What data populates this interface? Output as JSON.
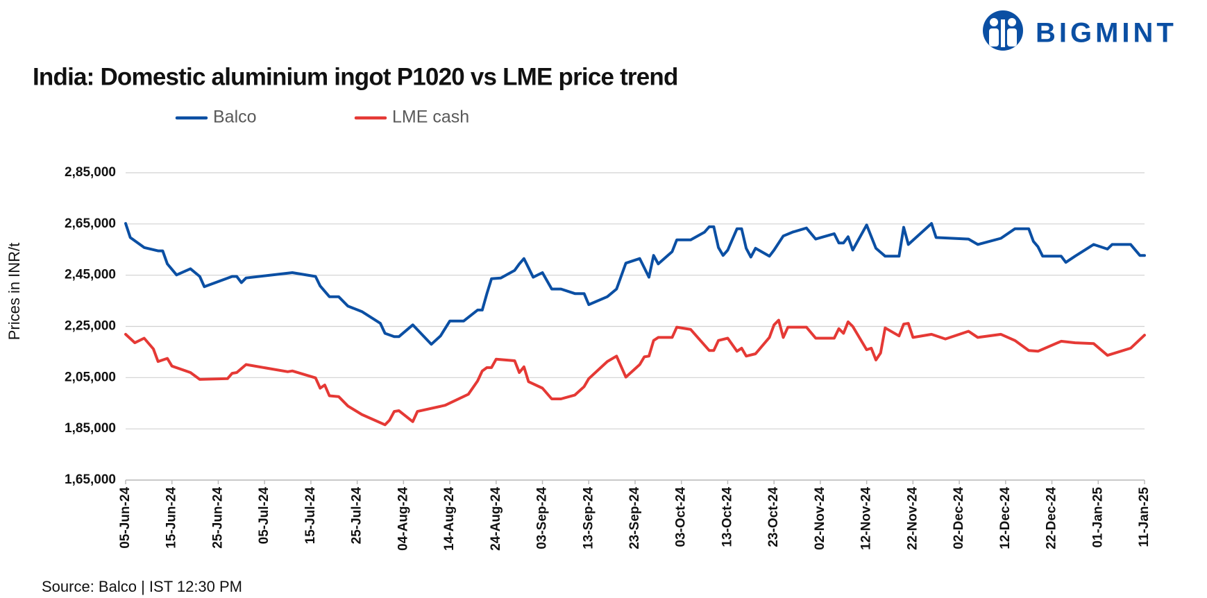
{
  "logo": "BIGMINT",
  "source": "Source: Balco | IST 12:30 PM",
  "chart_data": {
    "type": "line",
    "title": "India: Domestic aluminium ingot P1020 vs LME price trend",
    "y_label": "Prices in INR/t",
    "grid": true,
    "legend": "top-left",
    "xlim": [
      "2024-06-05",
      "2025-01-11"
    ],
    "xticks": [
      {
        "value": "2024-06-05",
        "label": "05-Jun-24"
      },
      {
        "value": "2024-06-15",
        "label": "15-Jun-24"
      },
      {
        "value": "2024-06-25",
        "label": "25-Jun-24"
      },
      {
        "value": "2024-07-05",
        "label": "05-Jul-24"
      },
      {
        "value": "2024-07-15",
        "label": "15-Jul-24"
      },
      {
        "value": "2024-07-25",
        "label": "25-Jul-24"
      },
      {
        "value": "2024-08-04",
        "label": "04-Aug-24"
      },
      {
        "value": "2024-08-14",
        "label": "14-Aug-24"
      },
      {
        "value": "2024-08-24",
        "label": "24-Aug-24"
      },
      {
        "value": "2024-09-03",
        "label": "03-Sep-24"
      },
      {
        "value": "2024-09-13",
        "label": "13-Sep-24"
      },
      {
        "value": "2024-09-23",
        "label": "23-Sep-24"
      },
      {
        "value": "2024-10-03",
        "label": "03-Oct-24"
      },
      {
        "value": "2024-10-13",
        "label": "13-Oct-24"
      },
      {
        "value": "2024-10-23",
        "label": "23-Oct-24"
      },
      {
        "value": "2024-11-02",
        "label": "02-Nov-24"
      },
      {
        "value": "2024-11-12",
        "label": "12-Nov-24"
      },
      {
        "value": "2024-11-22",
        "label": "22-Nov-24"
      },
      {
        "value": "2024-12-02",
        "label": "02-Dec-24"
      },
      {
        "value": "2024-12-12",
        "label": "12-Dec-24"
      },
      {
        "value": "2024-12-22",
        "label": "22-Dec-24"
      },
      {
        "value": "2025-01-01",
        "label": "01-Jan-25"
      },
      {
        "value": "2025-01-11",
        "label": "11-Jan-25"
      }
    ],
    "ylim": [
      165000,
      285000
    ],
    "yticks": [
      {
        "value": 165000,
        "label": "1,65,000"
      },
      {
        "value": 185000,
        "label": "1,85,000"
      },
      {
        "value": 205000,
        "label": "2,05,000"
      },
      {
        "value": 225000,
        "label": "2,25,000"
      },
      {
        "value": 245000,
        "label": "2,45,000"
      },
      {
        "value": 265000,
        "label": "2,65,000"
      },
      {
        "value": 285000,
        "label": "2,85,000"
      }
    ],
    "series": [
      {
        "name": "Balco",
        "color": "#0b4fa3",
        "x": [
          "2024-06-05",
          "2024-06-06",
          "2024-06-09",
          "2024-06-12",
          "2024-06-13",
          "2024-06-14",
          "2024-06-16",
          "2024-06-19",
          "2024-06-21",
          "2024-06-22",
          "2024-06-28",
          "2024-06-29",
          "2024-06-30",
          "2024-07-01",
          "2024-07-11",
          "2024-07-16",
          "2024-07-17",
          "2024-07-19",
          "2024-07-21",
          "2024-07-23",
          "2024-07-26",
          "2024-07-30",
          "2024-07-31",
          "2024-08-02",
          "2024-08-03",
          "2024-08-06",
          "2024-08-10",
          "2024-08-12",
          "2024-08-14",
          "2024-08-17",
          "2024-08-20",
          "2024-08-21",
          "2024-08-22",
          "2024-08-23",
          "2024-08-25",
          "2024-08-28",
          "2024-08-29",
          "2024-08-30",
          "2024-09-01",
          "2024-09-03",
          "2024-09-05",
          "2024-09-07",
          "2024-09-10",
          "2024-09-12",
          "2024-09-13",
          "2024-09-17",
          "2024-09-19",
          "2024-09-21",
          "2024-09-24",
          "2024-09-26",
          "2024-09-27",
          "2024-09-28",
          "2024-10-01",
          "2024-10-02",
          "2024-10-05",
          "2024-10-08",
          "2024-10-09",
          "2024-10-10",
          "2024-10-11",
          "2024-10-12",
          "2024-10-13",
          "2024-10-15",
          "2024-10-16",
          "2024-10-17",
          "2024-10-18",
          "2024-10-19",
          "2024-10-22",
          "2024-10-23",
          "2024-10-25",
          "2024-10-27",
          "2024-10-30",
          "2024-11-01",
          "2024-11-05",
          "2024-11-06",
          "2024-11-07",
          "2024-11-08",
          "2024-11-09",
          "2024-11-12",
          "2024-11-14",
          "2024-11-16",
          "2024-11-19",
          "2024-11-20",
          "2024-11-21",
          "2024-11-26",
          "2024-11-27",
          "2024-12-04",
          "2024-12-06",
          "2024-12-11",
          "2024-12-14",
          "2024-12-17",
          "2024-12-18",
          "2024-12-19",
          "2024-12-20",
          "2024-12-24",
          "2024-12-25",
          "2024-12-27",
          "2024-12-31",
          "2025-01-03",
          "2025-01-04",
          "2025-01-08",
          "2025-01-10",
          "2025-01-11"
        ],
        "values": [
          265200,
          259700,
          255800,
          254500,
          254500,
          249400,
          245100,
          247500,
          244500,
          240500,
          244500,
          244500,
          242100,
          243900,
          246000,
          244500,
          240800,
          236600,
          236600,
          232900,
          230800,
          226200,
          222300,
          221000,
          221000,
          225600,
          218000,
          221300,
          227100,
          227100,
          231400,
          231400,
          237800,
          243600,
          243900,
          246900,
          249400,
          251500,
          244200,
          246000,
          239600,
          239600,
          237800,
          237800,
          233500,
          236600,
          239600,
          249700,
          251500,
          244200,
          252700,
          249400,
          254200,
          258800,
          258800,
          261800,
          263900,
          263900,
          255800,
          252700,
          254800,
          263100,
          263100,
          255500,
          252100,
          255500,
          252400,
          254800,
          260300,
          261800,
          263400,
          259100,
          261200,
          257600,
          257600,
          260000,
          254800,
          264600,
          255500,
          252400,
          252400,
          263700,
          257000,
          265200,
          259700,
          259100,
          257000,
          259400,
          263100,
          263100,
          258200,
          256100,
          252400,
          252400,
          250000,
          252400,
          257000,
          255200,
          257000,
          257000,
          252700,
          252700
        ]
      },
      {
        "name": "LME cash",
        "color": "#e53935",
        "x": [
          "2024-06-05",
          "2024-06-07",
          "2024-06-09",
          "2024-06-11",
          "2024-06-12",
          "2024-06-14",
          "2024-06-15",
          "2024-06-19",
          "2024-06-21",
          "2024-06-27",
          "2024-06-28",
          "2024-06-29",
          "2024-07-01",
          "2024-07-10",
          "2024-07-11",
          "2024-07-16",
          "2024-07-17",
          "2024-07-18",
          "2024-07-19",
          "2024-07-21",
          "2024-07-23",
          "2024-07-26",
          "2024-07-31",
          "2024-08-01",
          "2024-08-02",
          "2024-08-03",
          "2024-08-06",
          "2024-08-07",
          "2024-08-13",
          "2024-08-18",
          "2024-08-20",
          "2024-08-21",
          "2024-08-22",
          "2024-08-23",
          "2024-08-24",
          "2024-08-28",
          "2024-08-29",
          "2024-08-30",
          "2024-08-31",
          "2024-09-03",
          "2024-09-05",
          "2024-09-07",
          "2024-09-10",
          "2024-09-12",
          "2024-09-13",
          "2024-09-17",
          "2024-09-19",
          "2024-09-21",
          "2024-09-24",
          "2024-09-25",
          "2024-09-26",
          "2024-09-27",
          "2024-09-28",
          "2024-10-01",
          "2024-10-02",
          "2024-10-05",
          "2024-10-09",
          "2024-10-10",
          "2024-10-11",
          "2024-10-13",
          "2024-10-15",
          "2024-10-16",
          "2024-10-17",
          "2024-10-19",
          "2024-10-22",
          "2024-10-23",
          "2024-10-24",
          "2024-10-25",
          "2024-10-26",
          "2024-10-30",
          "2024-11-01",
          "2024-11-05",
          "2024-11-06",
          "2024-11-07",
          "2024-11-08",
          "2024-11-09",
          "2024-11-12",
          "2024-11-13",
          "2024-11-14",
          "2024-11-15",
          "2024-11-16",
          "2024-11-19",
          "2024-11-20",
          "2024-11-21",
          "2024-11-22",
          "2024-11-26",
          "2024-11-29",
          "2024-12-04",
          "2024-12-06",
          "2024-12-11",
          "2024-12-14",
          "2024-12-17",
          "2024-12-19",
          "2024-12-24",
          "2024-12-27",
          "2024-12-31",
          "2025-01-03",
          "2025-01-08",
          "2025-01-11"
        ],
        "values": [
          221900,
          218600,
          220400,
          216200,
          211300,
          212500,
          209500,
          207000,
          204300,
          204600,
          206700,
          207000,
          210100,
          207300,
          207600,
          204900,
          200900,
          202100,
          197900,
          197600,
          193900,
          190600,
          186600,
          188400,
          191800,
          192100,
          187800,
          191800,
          194200,
          198500,
          203700,
          207600,
          208900,
          208900,
          212200,
          211600,
          207000,
          209200,
          203400,
          200900,
          196700,
          196700,
          198200,
          201500,
          204600,
          211300,
          213400,
          205200,
          210100,
          213100,
          213400,
          219500,
          220700,
          220700,
          224700,
          223800,
          215600,
          215600,
          219500,
          220400,
          215300,
          216500,
          213400,
          214300,
          220700,
          225600,
          227400,
          220700,
          224700,
          224700,
          220400,
          220400,
          224100,
          222300,
          226800,
          225000,
          215900,
          216500,
          211900,
          214600,
          224400,
          221300,
          225900,
          226200,
          220700,
          221900,
          220100,
          223100,
          220700,
          221900,
          219500,
          215600,
          215300,
          219200,
          218600,
          218300,
          213700,
          216500,
          221600
        ]
      }
    ]
  }
}
